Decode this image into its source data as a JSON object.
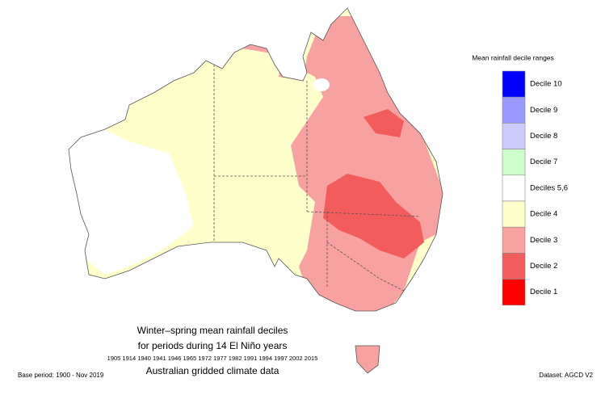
{
  "title_lines": [
    "Winter–spring mean rainfall deciles",
    "for periods during 14 El Niño years"
  ],
  "years": "1905 1914 1940 1941 1946 1965 1972 1977 1982 1991 1994 1997 2002 2015",
  "subtitle": "Australian gridded climate data",
  "base_period": "Base period: 1900 - Nov 2019",
  "dataset": "Dataset: AGCD V2",
  "legend": {
    "title": "Mean rainfall decile ranges",
    "items": [
      {
        "label": "Decile 10",
        "color": "#0000ff"
      },
      {
        "label": "Decile 9",
        "color": "#9999ff"
      },
      {
        "label": "Decile 8",
        "color": "#ccccff"
      },
      {
        "label": "Decile 7",
        "color": "#ccffcc"
      },
      {
        "label": "Deciles 5,6",
        "color": "#ffffff"
      },
      {
        "label": "Decile 4",
        "color": "#ffffcc"
      },
      {
        "label": "Decile 3",
        "color": "#f7a1a1"
      },
      {
        "label": "Decile 2",
        "color": "#f25c5c"
      },
      {
        "label": "Decile 1",
        "color": "#ff0000"
      }
    ]
  }
}
